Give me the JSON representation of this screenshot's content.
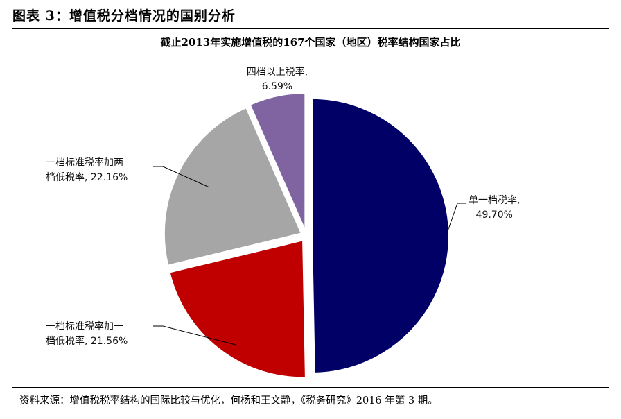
{
  "figure_title": "图表 3：增值税分档情况的国别分析",
  "source": "资料来源：增值税税率结构的国际比较与优化，何杨和王文静，《税务研究》2016 年第 3 期。",
  "chart_data": {
    "type": "pie",
    "title": "截止2013年实施增值税的167个国家（地区）税率结构国家占比",
    "slices": [
      {
        "label_line1": "单一档税率,",
        "label_line2": "49.70%",
        "value": 49.7,
        "color": "#000066"
      },
      {
        "label_line1": "一档标准税率加一",
        "label_line2": "档低税率, 21.56%",
        "value": 21.56,
        "color": "#C00000"
      },
      {
        "label_line1": "一档标准税率加两",
        "label_line2": "档低税率, 22.16%",
        "value": 22.16,
        "color": "#A6A6A6"
      },
      {
        "label_line1": "四档以上税率,",
        "label_line2": "6.59%",
        "value": 6.59,
        "color": "#8064A2"
      }
    ]
  }
}
